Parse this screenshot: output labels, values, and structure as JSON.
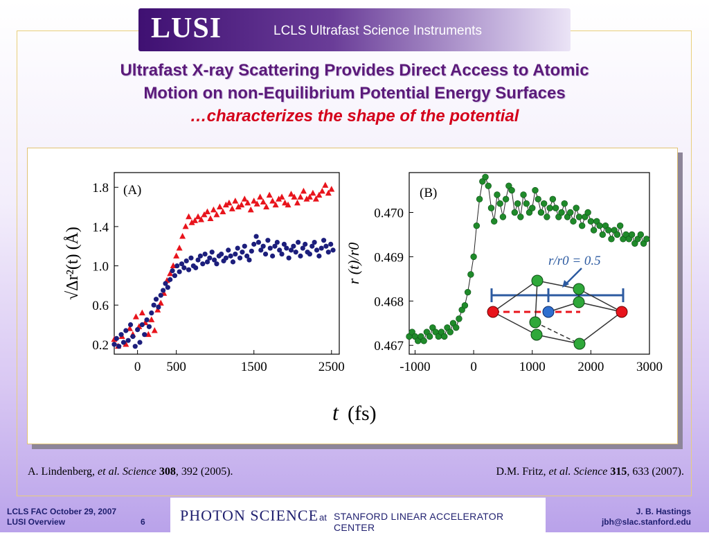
{
  "banner": {
    "logo": "LUSI",
    "subtitle": "LCLS Ultrafast Science Instruments"
  },
  "title": {
    "line1": "Ultrafast X-ray Scattering Provides Direct Access to Atomic",
    "line2": "Motion on non-Equilibrium Potential Energy Surfaces",
    "line3": "…characterizes the shape of the potential"
  },
  "figure": {
    "shared_xlabel_t": "t",
    "shared_xlabel_unit": "(fs)"
  },
  "chart_data": [
    {
      "type": "scatter",
      "panel_label": "(A)",
      "ylabel": "√Δr²(t) (Å)",
      "x_ticks": [
        "0",
        "500",
        "1500",
        "2500"
      ],
      "y_ticks": [
        "0.2",
        "0.6",
        "1.0",
        "1.4",
        "1.8"
      ],
      "xlim": [
        -300,
        2600
      ],
      "ylim": [
        0.1,
        1.95
      ],
      "series": [
        {
          "color": "#e8141c",
          "marker": "triangle",
          "x": [
            -300,
            -250,
            -200,
            -150,
            -100,
            -60,
            -20,
            20,
            60,
            100,
            140,
            180,
            220,
            260,
            300,
            340,
            380,
            420,
            460,
            500,
            540,
            580,
            620,
            660,
            700,
            740,
            780,
            820,
            860,
            900,
            940,
            980,
            1020,
            1060,
            1100,
            1140,
            1180,
            1220,
            1260,
            1300,
            1340,
            1380,
            1420,
            1460,
            1500,
            1540,
            1580,
            1620,
            1660,
            1700,
            1740,
            1780,
            1820,
            1860,
            1900,
            1940,
            1980,
            2020,
            2060,
            2100,
            2140,
            2180,
            2220,
            2260,
            2300,
            2340,
            2380,
            2420,
            2460,
            2500
          ],
          "y": [
            0.25,
            0.18,
            0.28,
            0.2,
            0.36,
            0.3,
            0.48,
            0.38,
            0.52,
            0.42,
            0.3,
            0.45,
            0.34,
            0.55,
            0.62,
            0.72,
            0.85,
            0.92,
            1.0,
            1.1,
            1.18,
            1.3,
            1.4,
            1.5,
            1.44,
            1.46,
            1.5,
            1.47,
            1.52,
            1.55,
            1.48,
            1.57,
            1.52,
            1.6,
            1.55,
            1.62,
            1.64,
            1.58,
            1.66,
            1.6,
            1.62,
            1.68,
            1.64,
            1.57,
            1.66,
            1.63,
            1.7,
            1.65,
            1.6,
            1.72,
            1.66,
            1.62,
            1.68,
            1.7,
            1.64,
            1.62,
            1.73,
            1.7,
            1.64,
            1.7,
            1.76,
            1.68,
            1.7,
            1.74,
            1.68,
            1.72,
            1.76,
            1.82,
            1.74,
            1.78
          ]
        },
        {
          "color": "#1c1e7c",
          "marker": "circle",
          "x": [
            -300,
            -270,
            -240,
            -210,
            -180,
            -150,
            -120,
            -90,
            -60,
            -30,
            0,
            30,
            60,
            90,
            120,
            150,
            180,
            210,
            240,
            270,
            300,
            330,
            360,
            390,
            420,
            450,
            480,
            510,
            540,
            570,
            600,
            630,
            660,
            690,
            720,
            750,
            780,
            810,
            840,
            870,
            900,
            930,
            960,
            990,
            1020,
            1050,
            1080,
            1110,
            1140,
            1170,
            1200,
            1230,
            1260,
            1290,
            1320,
            1350,
            1380,
            1410,
            1440,
            1470,
            1500,
            1530,
            1560,
            1590,
            1620,
            1650,
            1680,
            1710,
            1740,
            1770,
            1800,
            1830,
            1860,
            1890,
            1920,
            1950,
            1980,
            2010,
            2040,
            2070,
            2100,
            2130,
            2160,
            2190,
            2220,
            2250,
            2280,
            2310,
            2340,
            2370,
            2400,
            2430,
            2460,
            2490,
            2520
          ],
          "y": [
            0.2,
            0.26,
            0.18,
            0.3,
            0.22,
            0.34,
            0.24,
            0.4,
            0.28,
            0.18,
            0.35,
            0.22,
            0.4,
            0.3,
            0.45,
            0.38,
            0.52,
            0.6,
            0.66,
            0.58,
            0.7,
            0.75,
            0.82,
            0.78,
            0.86,
            0.95,
            0.9,
            1.0,
            0.94,
            1.02,
            0.98,
            1.05,
            0.96,
            1.08,
            1.0,
            0.98,
            1.06,
            1.1,
            1.02,
            1.12,
            1.04,
            1.08,
            1.14,
            1.06,
            1.02,
            1.1,
            1.12,
            1.05,
            1.08,
            1.16,
            1.1,
            1.04,
            1.12,
            1.18,
            1.08,
            1.14,
            1.2,
            1.1,
            1.06,
            1.15,
            1.22,
            1.3,
            1.24,
            1.16,
            1.2,
            1.12,
            1.26,
            1.18,
            1.1,
            1.2,
            1.24,
            1.16,
            1.12,
            1.22,
            1.18,
            1.08,
            1.16,
            1.2,
            1.14,
            1.24,
            1.1,
            1.18,
            1.22,
            1.14,
            1.12,
            1.2,
            1.24,
            1.16,
            1.1,
            1.18,
            1.26,
            1.2,
            1.14,
            1.22,
            1.16
          ]
        }
      ]
    },
    {
      "type": "line",
      "panel_label": "(B)",
      "ylabel": "r (t)/r0",
      "x_ticks": [
        "-1000",
        "0",
        "1000",
        "2000",
        "3000"
      ],
      "y_ticks": [
        "0.467",
        "0.468",
        "0.469",
        "0.470"
      ],
      "xlim": [
        -1100,
        3000
      ],
      "ylim": [
        0.4668,
        0.4709
      ],
      "inset_label": "r/r0 = 0.5",
      "series": [
        {
          "color": "#1f8a2a",
          "marker": "circle",
          "x": [
            -1100,
            -1050,
            -1000,
            -950,
            -900,
            -850,
            -800,
            -750,
            -700,
            -650,
            -600,
            -550,
            -500,
            -450,
            -400,
            -350,
            -300,
            -250,
            -200,
            -150,
            -100,
            -50,
            0,
            50,
            100,
            150,
            200,
            250,
            300,
            350,
            400,
            450,
            500,
            550,
            600,
            650,
            700,
            750,
            800,
            850,
            900,
            950,
            1000,
            1050,
            1100,
            1150,
            1200,
            1250,
            1300,
            1350,
            1400,
            1450,
            1500,
            1550,
            1600,
            1650,
            1700,
            1750,
            1800,
            1850,
            1900,
            1950,
            2000,
            2050,
            2100,
            2150,
            2200,
            2250,
            2300,
            2350,
            2400,
            2450,
            2500,
            2550,
            2600,
            2650,
            2700,
            2750,
            2800,
            2850,
            2900,
            2950
          ],
          "y": [
            0.4672,
            0.4673,
            0.4672,
            0.4671,
            0.4672,
            0.4671,
            0.4673,
            0.4672,
            0.4674,
            0.4673,
            0.4672,
            0.4673,
            0.4672,
            0.4674,
            0.4673,
            0.4675,
            0.4674,
            0.4676,
            0.4678,
            0.4679,
            0.4682,
            0.4686,
            0.469,
            0.4697,
            0.4703,
            0.4707,
            0.4708,
            0.4706,
            0.4701,
            0.4698,
            0.4704,
            0.4702,
            0.4699,
            0.4703,
            0.4706,
            0.4705,
            0.47,
            0.4702,
            0.4699,
            0.4704,
            0.4702,
            0.47,
            0.4701,
            0.4705,
            0.4703,
            0.47,
            0.4702,
            0.4699,
            0.4701,
            0.4703,
            0.4701,
            0.4699,
            0.47,
            0.4702,
            0.4699,
            0.47,
            0.4698,
            0.4701,
            0.4699,
            0.4697,
            0.4699,
            0.47,
            0.4698,
            0.4696,
            0.4698,
            0.4697,
            0.4695,
            0.4697,
            0.4696,
            0.4694,
            0.4696,
            0.4695,
            0.4697,
            0.4694,
            0.4695,
            0.4694,
            0.4695,
            0.4693,
            0.4694,
            0.4695,
            0.4693,
            0.4694
          ]
        }
      ]
    }
  ],
  "citations": {
    "left": {
      "author": "A. Lindenberg, ",
      "etal": "et al. Science ",
      "vol": "308",
      "rest": ", 392 (2005)."
    },
    "right": {
      "author": "D.M. Fritz, ",
      "etal": "et al. Science ",
      "vol": "315",
      "rest": ", 633 (2007)."
    }
  },
  "footer": {
    "left_line1": "LCLS FAC October 29, 2007",
    "left_line2": "LUSI Overview",
    "page_number": "6",
    "brand": "PHOTON SCIENCE",
    "at": "at",
    "lab": "STANFORD LINEAR ACCELERATOR CENTER",
    "right_line1": "J. B. Hastings",
    "right_line2": "jbh@slac.stanford.edu"
  }
}
